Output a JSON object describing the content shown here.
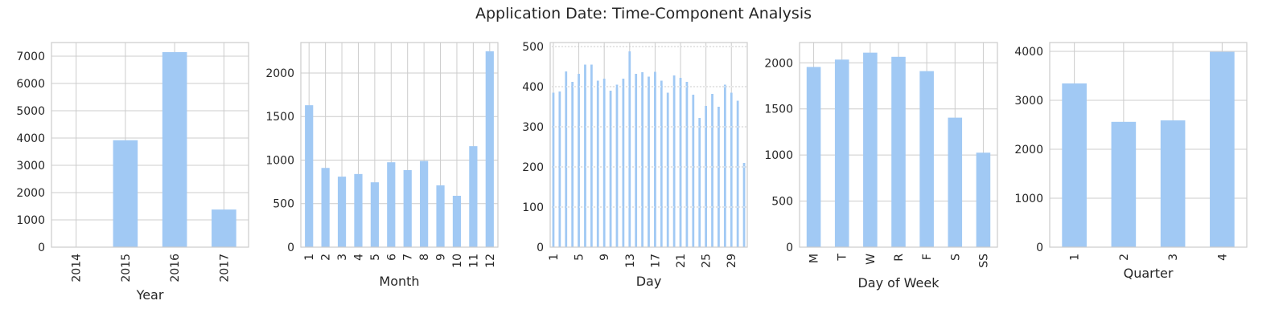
{
  "figure_title": "Application Date: Time-Component Analysis",
  "colors": {
    "bar": "#a1c9f4",
    "grid": "#cccccc",
    "spine": "#cccccc",
    "text": "#262626"
  },
  "chart_data": [
    {
      "type": "bar",
      "categories": [
        "2014",
        "2015",
        "2016",
        "2017"
      ],
      "values": [
        0,
        3920,
        7150,
        1380
      ],
      "xlabel": "Year",
      "ylabel": "",
      "ylim": [
        0,
        7500
      ],
      "yticks": [
        0,
        1000,
        2000,
        3000,
        4000,
        5000,
        6000,
        7000
      ],
      "xtick_labels": [
        "2014",
        "2015",
        "2016",
        "2017"
      ],
      "grid": true
    },
    {
      "type": "bar",
      "categories": [
        "1",
        "2",
        "3",
        "4",
        "5",
        "6",
        "7",
        "8",
        "9",
        "10",
        "11",
        "12"
      ],
      "values": [
        1630,
        910,
        810,
        840,
        745,
        975,
        885,
        990,
        710,
        590,
        1160,
        2250
      ],
      "xlabel": "Month",
      "ylabel": "",
      "ylim": [
        0,
        2350
      ],
      "yticks": [
        0,
        500,
        1000,
        1500,
        2000
      ],
      "xtick_labels": [
        "1",
        "2",
        "3",
        "4",
        "5",
        "6",
        "7",
        "8",
        "9",
        "10",
        "11",
        "12"
      ],
      "grid": true
    },
    {
      "type": "bar",
      "categories": [
        "1",
        "2",
        "3",
        "4",
        "5",
        "6",
        "7",
        "8",
        "9",
        "10",
        "11",
        "12",
        "13",
        "14",
        "15",
        "16",
        "17",
        "18",
        "19",
        "20",
        "21",
        "22",
        "23",
        "24",
        "25",
        "26",
        "27",
        "28",
        "29",
        "30",
        "31"
      ],
      "values": [
        385,
        388,
        438,
        412,
        432,
        455,
        455,
        415,
        420,
        390,
        405,
        420,
        488,
        432,
        436,
        425,
        437,
        415,
        385,
        428,
        422,
        412,
        380,
        322,
        352,
        382,
        350,
        405,
        385,
        365,
        210
      ],
      "xlabel": "Day",
      "ylabel": "",
      "ylim": [
        0,
        510
      ],
      "yticks": [
        0,
        100,
        200,
        300,
        400,
        500
      ],
      "xtick_labels": [
        "1",
        "5",
        "9",
        "13",
        "17",
        "21",
        "25",
        "29"
      ],
      "grid": true
    },
    {
      "type": "bar",
      "categories": [
        "M",
        "T",
        "W",
        "R",
        "F",
        "S",
        "SS"
      ],
      "values": [
        1955,
        2035,
        2110,
        2065,
        1910,
        1405,
        1025
      ],
      "xlabel": "Day of Week",
      "ylabel": "",
      "ylim": [
        0,
        2220
      ],
      "yticks": [
        0,
        500,
        1000,
        1500,
        2000
      ],
      "xtick_labels": [
        "M",
        "T",
        "W",
        "R",
        "F",
        "S",
        "SS"
      ],
      "grid": true
    },
    {
      "type": "bar",
      "categories": [
        "1",
        "2",
        "3",
        "4"
      ],
      "values": [
        3345,
        2560,
        2590,
        3990
      ],
      "xlabel": "Quarter",
      "ylabel": "",
      "ylim": [
        0,
        4180
      ],
      "yticks": [
        0,
        1000,
        2000,
        3000,
        4000
      ],
      "xtick_labels": [
        "1",
        "2",
        "3",
        "4"
      ],
      "grid": true
    }
  ]
}
